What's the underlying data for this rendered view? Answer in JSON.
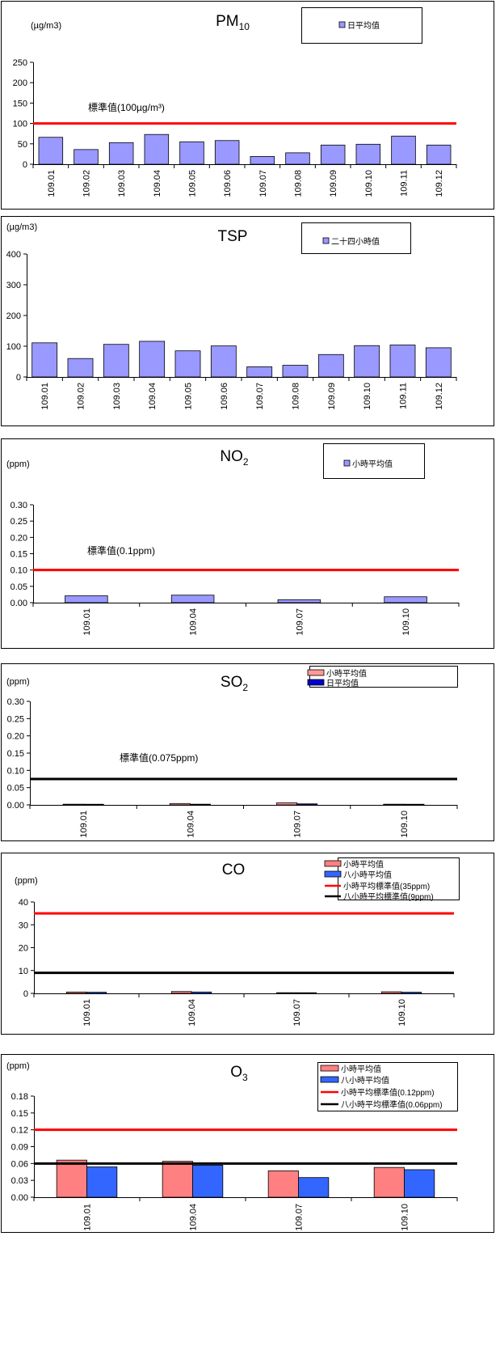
{
  "chart_data": [
    {
      "type": "bar",
      "title": "PM",
      "title_sub": "10",
      "unit_label": "(µg/m3)",
      "categories": [
        "109.01",
        "109.02",
        "109.03",
        "109.04",
        "109.05",
        "109.06",
        "109.07",
        "109.08",
        "109.09",
        "109.10",
        "109.11",
        "109.12"
      ],
      "series": [
        {
          "name": "日平均值",
          "values": [
            66,
            36,
            53,
            73,
            55,
            58,
            19,
            28,
            47,
            49,
            69,
            47
          ],
          "color": "#9999ff"
        }
      ],
      "ylim": [
        0,
        250
      ],
      "yticks": [
        0,
        50,
        100,
        150,
        200,
        250
      ],
      "ytick_labels": [
        "0",
        "50",
        "100",
        "150",
        "200",
        "250"
      ],
      "standards": [
        {
          "value": 100,
          "color": "#ff0000"
        }
      ],
      "standard_label": "標準值(100µg/m³)",
      "legend": "top-right"
    },
    {
      "type": "bar",
      "title": "TSP",
      "title_sub": "",
      "unit_label": "(µg/m3)",
      "categories": [
        "109.01",
        "109.02",
        "109.03",
        "109.04",
        "109.05",
        "109.06",
        "109.07",
        "109.08",
        "109.09",
        "109.10",
        "109.11",
        "109.12"
      ],
      "series": [
        {
          "name": "二十四小時值",
          "values": [
            111,
            60,
            106,
            116,
            85,
            101,
            33,
            38,
            73,
            102,
            104,
            95
          ],
          "color": "#9999ff"
        }
      ],
      "ylim": [
        0,
        400
      ],
      "yticks": [
        0,
        100,
        200,
        300,
        400
      ],
      "ytick_labels": [
        "0",
        "100",
        "200",
        "300",
        "400"
      ],
      "standards": [],
      "standard_label": "",
      "legend": "top-right"
    },
    {
      "type": "bar",
      "title": "NO",
      "title_sub": "2",
      "unit_label": "(ppm)",
      "categories": [
        "109.01",
        "109.04",
        "109.07",
        "109.10"
      ],
      "series": [
        {
          "name": "小時平均值",
          "values": [
            0.021,
            0.023,
            0.009,
            0.018
          ],
          "color": "#9999ff"
        }
      ],
      "ylim": [
        0,
        0.3
      ],
      "yticks": [
        0,
        0.05,
        0.1,
        0.15,
        0.2,
        0.25,
        0.3
      ],
      "ytick_labels": [
        "0.00",
        "0.05",
        "0.10",
        "0.15",
        "0.20",
        "0.25",
        "0.30"
      ],
      "standards": [
        {
          "value": 0.1,
          "color": "#ff0000"
        }
      ],
      "standard_label": "標準值(0.1ppm)",
      "legend": "top-right"
    },
    {
      "type": "bar",
      "title": "SO",
      "title_sub": "2",
      "unit_label": "(ppm)",
      "categories": [
        "109.01",
        "109.04",
        "109.07",
        "109.10"
      ],
      "series": [
        {
          "name": "小時平均值",
          "values": [
            0.002,
            0.004,
            0.006,
            0.002
          ],
          "color": "#ff9999"
        },
        {
          "name": "日平均值",
          "values": [
            0.001,
            0.002,
            0.003,
            0.001
          ],
          "color": "#0000cc"
        }
      ],
      "ylim": [
        0,
        0.3
      ],
      "yticks": [
        0,
        0.05,
        0.1,
        0.15,
        0.2,
        0.25,
        0.3
      ],
      "ytick_labels": [
        "0.00",
        "0.05",
        "0.10",
        "0.15",
        "0.20",
        "0.25",
        "0.30"
      ],
      "standards": [
        {
          "value": 0.075,
          "color": "#000000"
        }
      ],
      "standard_label": "標準值(0.075ppm)",
      "legend": "top-right"
    },
    {
      "type": "bar",
      "title": "CO",
      "title_sub": "",
      "unit_label": "(ppm)",
      "categories": [
        "109.01",
        "109.04",
        "109.07",
        "109.10"
      ],
      "series": [
        {
          "name": "小時平均值",
          "values": [
            0.6,
            0.8,
            0.3,
            0.7
          ],
          "color": "#ff8080"
        },
        {
          "name": "八小時平均值",
          "values": [
            0.5,
            0.6,
            0.2,
            0.5
          ],
          "color": "#3366ff"
        }
      ],
      "ylim": [
        0,
        40
      ],
      "yticks": [
        0,
        10,
        20,
        30,
        40
      ],
      "ytick_labels": [
        "0",
        "10",
        "20",
        "30",
        "40"
      ],
      "standards": [
        {
          "name": "小時平均標準值(35ppm)",
          "value": 35,
          "color": "#ff0000"
        },
        {
          "name": "八小時平均標準值(9ppm)",
          "value": 9,
          "color": "#000000"
        }
      ],
      "standard_label": "",
      "legend": "top-right"
    },
    {
      "type": "bar",
      "title": "O",
      "title_sub": "3",
      "unit_label": "(ppm)",
      "categories": [
        "109.01",
        "109.04",
        "109.07",
        "109.10"
      ],
      "series": [
        {
          "name": "小時平均值",
          "values": [
            0.066,
            0.064,
            0.047,
            0.053
          ],
          "color": "#ff8080"
        },
        {
          "name": "八小時平均值",
          "values": [
            0.054,
            0.057,
            0.035,
            0.049
          ],
          "color": "#3366ff"
        }
      ],
      "ylim": [
        0,
        0.18
      ],
      "yticks": [
        0,
        0.03,
        0.06,
        0.09,
        0.12,
        0.15,
        0.18
      ],
      "ytick_labels": [
        "0.00",
        "0.03",
        "0.06",
        "0.09",
        "0.12",
        "0.15",
        "0.18"
      ],
      "standards": [
        {
          "name": "小時平均標準值(0.12ppm)",
          "value": 0.12,
          "color": "#ff0000"
        },
        {
          "name": "八小時平均標準值(0.06ppm)",
          "value": 0.06,
          "color": "#000000"
        }
      ],
      "standard_label": "",
      "legend": "top-right"
    }
  ]
}
